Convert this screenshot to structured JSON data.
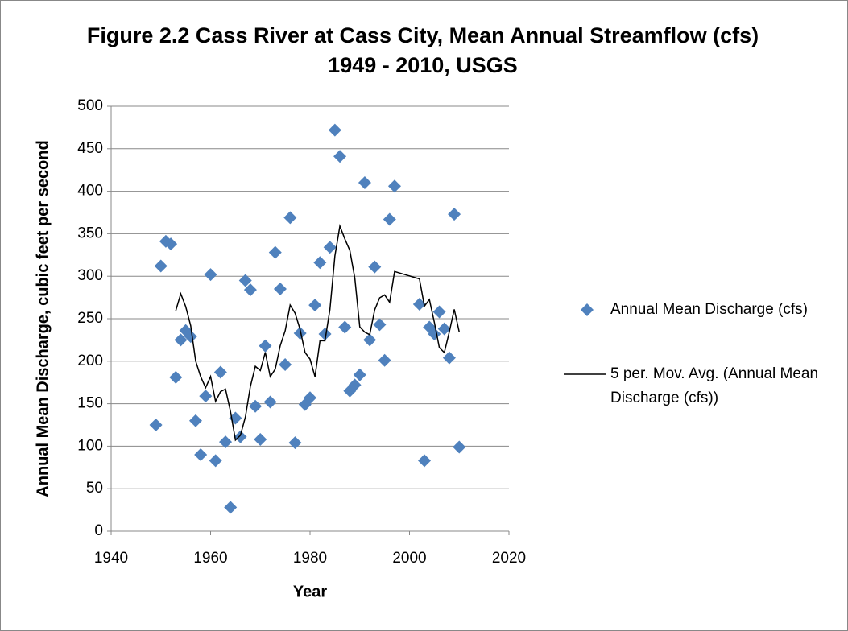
{
  "chart_data": {
    "type": "scatter",
    "title": "Figure 2.2 Cass River at Cass City, Mean Annual Streamflow (cfs) 1949 - 2010, USGS",
    "xlabel": "Year",
    "ylabel": "Annual Mean Discharge, cubic feet per second",
    "xlim": [
      1940,
      2020
    ],
    "xticks": [
      1940,
      1960,
      1980,
      2000,
      2020
    ],
    "ylim": [
      0,
      500
    ],
    "yticks": [
      0,
      50,
      100,
      150,
      200,
      250,
      300,
      350,
      400,
      450,
      500
    ],
    "grid": true,
    "legend": "right",
    "series": [
      {
        "name": "Annual Mean Discharge (cfs)",
        "type": "scatter",
        "color": "#4f81bd",
        "x": [
          1949,
          1950,
          1951,
          1952,
          1953,
          1954,
          1955,
          1956,
          1957,
          1958,
          1959,
          1960,
          1961,
          1962,
          1963,
          1964,
          1965,
          1966,
          1967,
          1968,
          1969,
          1970,
          1971,
          1972,
          1973,
          1974,
          1975,
          1976,
          1977,
          1978,
          1979,
          1980,
          1981,
          1982,
          1983,
          1984,
          1985,
          1986,
          1987,
          1988,
          1989,
          1990,
          1991,
          1992,
          1993,
          1994,
          1995,
          1996,
          1997,
          2002,
          2003,
          2004,
          2005,
          2006,
          2007,
          2008,
          2009,
          2010
        ],
        "values": [
          125,
          312,
          341,
          338,
          181,
          225,
          236,
          229,
          130,
          90,
          159,
          302,
          83,
          187,
          105,
          28,
          133,
          111,
          295,
          284,
          147,
          108,
          218,
          152,
          328,
          285,
          196,
          369,
          104,
          233,
          149,
          157,
          266,
          316,
          232,
          334,
          472,
          441,
          240,
          165,
          172,
          184,
          410,
          225,
          311,
          243,
          201,
          367,
          406,
          267,
          83,
          240,
          232,
          258,
          238,
          204,
          373,
          99
        ]
      },
      {
        "name": "5 per. Mov. Avg. (Annual Mean Discharge (cfs))",
        "type": "line",
        "color": "#000000",
        "x": [
          1953,
          1954,
          1955,
          1956,
          1957,
          1958,
          1959,
          1960,
          1961,
          1962,
          1963,
          1964,
          1965,
          1966,
          1967,
          1968,
          1969,
          1970,
          1971,
          1972,
          1973,
          1974,
          1975,
          1976,
          1977,
          1978,
          1979,
          1980,
          1981,
          1982,
          1983,
          1984,
          1985,
          1986,
          1987,
          1988,
          1989,
          1990,
          1991,
          1992,
          1993,
          1994,
          1995,
          1996,
          1997,
          2002,
          2003,
          2004,
          2005,
          2006,
          2007,
          2008,
          2009,
          2010
        ],
        "values": [
          259.4,
          279.4,
          264.2,
          241.8,
          200.2,
          182,
          168.8,
          182,
          152.8,
          164.2,
          167.2,
          141,
          107.2,
          112.8,
          134.4,
          170.2,
          194,
          189,
          210.4,
          181.8,
          190.6,
          218.2,
          235.8,
          266,
          256.4,
          237.4,
          210.2,
          202.4,
          181.8,
          224.2,
          224,
          261,
          324,
          359,
          343.8,
          330.4,
          298,
          240.4,
          234.2,
          231.2,
          260.4,
          274.6,
          278,
          269.4,
          305.6,
          296.8,
          264.8,
          272.6,
          245.6,
          216,
          210.2,
          234.4,
          261,
          234.4
        ]
      }
    ]
  }
}
